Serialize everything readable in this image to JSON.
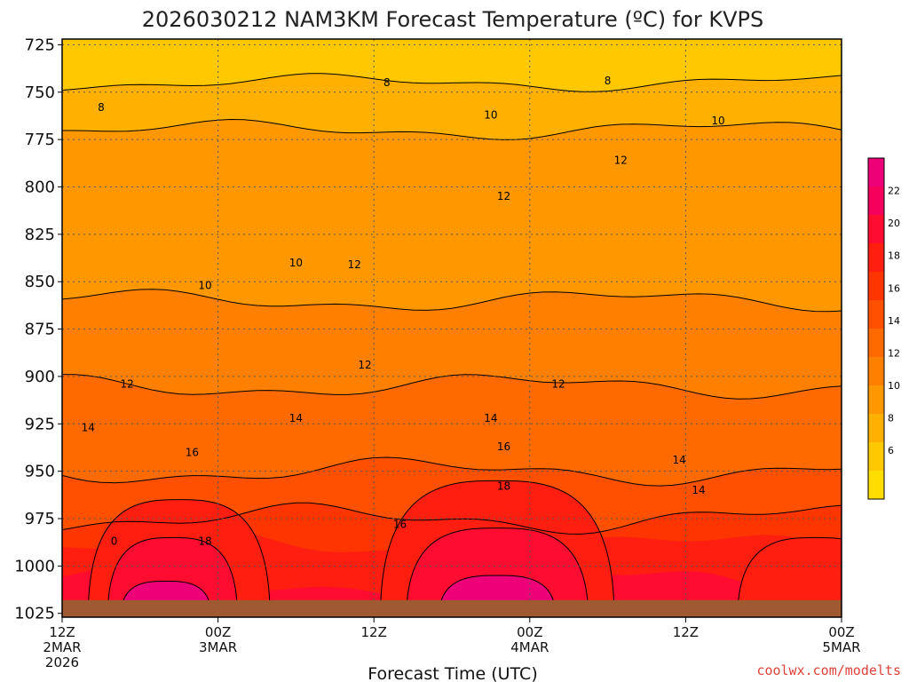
{
  "title": "2026030212 NAM3KM Forecast Temperature (ºC) for KVPS",
  "credit": "coolwx.com/modelts",
  "colors": {
    "background": "#ffffff",
    "ground": "#a05a32",
    "contour": "#000000",
    "grid": "#555555"
  },
  "chart_data": {
    "type": "heatmap",
    "title": "2026030212 NAM3KM Forecast Temperature (ºC) for KVPS",
    "xlabel": "Forecast Time (UTC)",
    "ylabel": "",
    "yscale": "pressure (hPa), inverted",
    "ylim": [
      1027,
      722
    ],
    "xlim_hours": [
      0,
      60
    ],
    "grid": true,
    "y_ticks": [
      "725",
      "750",
      "775",
      "800",
      "825",
      "850",
      "875",
      "900",
      "925",
      "950",
      "975",
      "1000",
      "1025"
    ],
    "x_ticks": [
      {
        "hour": 0,
        "lines": [
          "12Z",
          "2MAR",
          "2026"
        ]
      },
      {
        "hour": 12,
        "lines": [
          "00Z",
          "3MAR"
        ]
      },
      {
        "hour": 24,
        "lines": [
          "12Z"
        ]
      },
      {
        "hour": 36,
        "lines": [
          "00Z",
          "4MAR"
        ]
      },
      {
        "hour": 48,
        "lines": [
          "12Z"
        ]
      },
      {
        "hour": 60,
        "lines": [
          "00Z",
          "5MAR"
        ]
      }
    ],
    "colorbar": {
      "levels": [
        "6",
        "8",
        "10",
        "12",
        "14",
        "16",
        "18",
        "20",
        "22"
      ],
      "colors": [
        "#ffdd00",
        "#ffc800",
        "#ffb000",
        "#ff9800",
        "#ff8000",
        "#ff6a00",
        "#ff5000",
        "#ff3500",
        "#ff1e10",
        "#ff0c30",
        "#f5005a",
        "#ee0078"
      ]
    },
    "temperature_layers": [
      {
        "range": "6-8",
        "pressure_top": 722,
        "pressure_bottom": 760
      },
      {
        "range": "8-10",
        "pressure_top": 745,
        "pressure_bottom": 800
      },
      {
        "range": "10-12",
        "pressure_top": 770,
        "pressure_bottom": 880
      },
      {
        "range": "12-14",
        "pressure_top": 860,
        "pressure_bottom": 915
      },
      {
        "range": "14-16",
        "pressure_top": 905,
        "pressure_bottom": 955
      },
      {
        "range": "16-18",
        "pressure_top": 950,
        "pressure_bottom": 985
      },
      {
        "range": "18-20",
        "pressure_top": 975,
        "pressure_bottom": 1020
      },
      {
        "range": "20-22",
        "pressure_top": 990,
        "pressure_bottom": 1020
      },
      {
        "range": "22-24",
        "pressure_top": 1008,
        "pressure_bottom": 1020
      }
    ],
    "contour_labels": [
      {
        "text": "8",
        "hour": 3.0,
        "pressure": 758
      },
      {
        "text": "8",
        "hour": 25.0,
        "pressure": 745
      },
      {
        "text": "8",
        "hour": 42.0,
        "pressure": 744
      },
      {
        "text": "10",
        "hour": 33.0,
        "pressure": 762
      },
      {
        "text": "10",
        "hour": 50.5,
        "pressure": 765
      },
      {
        "text": "12",
        "hour": 34.0,
        "pressure": 805
      },
      {
        "text": "12",
        "hour": 43.0,
        "pressure": 786
      },
      {
        "text": "10",
        "hour": 18.0,
        "pressure": 840
      },
      {
        "text": "12",
        "hour": 22.5,
        "pressure": 841
      },
      {
        "text": "10",
        "hour": 11.0,
        "pressure": 852
      },
      {
        "text": "12",
        "hour": 23.3,
        "pressure": 894
      },
      {
        "text": "12",
        "hour": 38.2,
        "pressure": 904
      },
      {
        "text": "12",
        "hour": 5.0,
        "pressure": 904
      },
      {
        "text": "14",
        "hour": 2.0,
        "pressure": 927
      },
      {
        "text": "14",
        "hour": 18.0,
        "pressure": 922
      },
      {
        "text": "14",
        "hour": 33.0,
        "pressure": 922
      },
      {
        "text": "14",
        "hour": 47.5,
        "pressure": 944
      },
      {
        "text": "14",
        "hour": 49.0,
        "pressure": 960
      },
      {
        "text": "16",
        "hour": 10.0,
        "pressure": 940
      },
      {
        "text": "16",
        "hour": 34.0,
        "pressure": 937
      },
      {
        "text": "16",
        "hour": 26.0,
        "pressure": 978
      },
      {
        "text": "18",
        "hour": 34.0,
        "pressure": 958
      },
      {
        "text": "18",
        "hour": 11.0,
        "pressure": 987
      },
      {
        "text": "0",
        "hour": 4.0,
        "pressure": 987
      }
    ]
  }
}
